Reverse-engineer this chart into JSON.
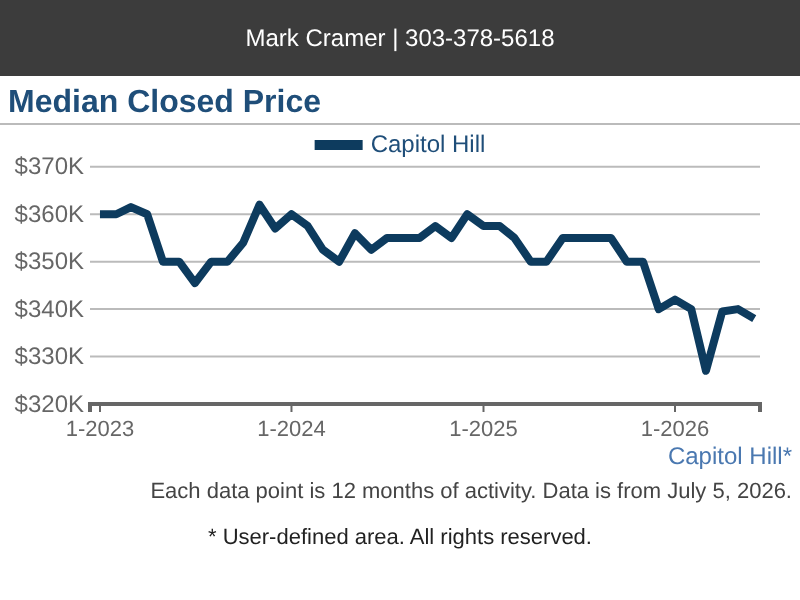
{
  "chart_data": {
    "type": "line",
    "title": "Median Closed Price",
    "subtitle": "Mark Cramer | 303-378-5618",
    "x": [
      "2023-01",
      "2023-02",
      "2023-03",
      "2023-04",
      "2023-05",
      "2023-06",
      "2023-07",
      "2023-08",
      "2023-09",
      "2023-10",
      "2023-11",
      "2023-12",
      "2024-01",
      "2024-02",
      "2024-03",
      "2024-04",
      "2024-05",
      "2024-06",
      "2024-07",
      "2024-08",
      "2024-09",
      "2024-10",
      "2024-11",
      "2024-12",
      "2025-01",
      "2025-02",
      "2025-03",
      "2025-04",
      "2025-05",
      "2025-06",
      "2025-07",
      "2025-08",
      "2025-09",
      "2025-10",
      "2025-11",
      "2025-12",
      "2026-01",
      "2026-02",
      "2026-03",
      "2026-04",
      "2026-05",
      "2026-06"
    ],
    "series": [
      {
        "name": "Capitol Hill",
        "color": "#0d3b5e",
        "values": [
          360,
          360,
          361.5,
          360,
          350,
          350,
          345.5,
          350,
          350,
          354,
          362,
          357,
          360,
          357.5,
          352.5,
          350,
          356,
          352.5,
          355,
          355,
          355,
          357.5,
          355,
          360,
          357.5,
          357.5,
          355,
          350,
          350,
          355,
          355,
          355,
          355,
          350,
          350,
          340,
          342,
          340,
          327,
          339.5,
          340,
          338
        ]
      }
    ],
    "xlim": [
      "2022-12-13",
      "2026-06-12"
    ],
    "xticks": [
      {
        "value": "2023-01",
        "label": "1-2023"
      },
      {
        "value": "2024-01",
        "label": "1-2024"
      },
      {
        "value": "2025-01",
        "label": "1-2025"
      },
      {
        "value": "2026-01",
        "label": "1-2026"
      }
    ],
    "ylim": [
      320,
      370
    ],
    "yticks": [
      {
        "value": 320,
        "label": "$320K"
      },
      {
        "value": 330,
        "label": "$330K"
      },
      {
        "value": 340,
        "label": "$340K"
      },
      {
        "value": 350,
        "label": "$350K"
      },
      {
        "value": 360,
        "label": "$360K"
      },
      {
        "value": 370,
        "label": "$370K"
      }
    ],
    "grid": "y",
    "legend": "top",
    "marker": "none",
    "line_style": "solid",
    "annotations": [
      "Capitol Hill*",
      "Each data point is 12 months of activity. Data is from July 5, 2026.",
      "* User-defined area. All rights reserved."
    ]
  }
}
